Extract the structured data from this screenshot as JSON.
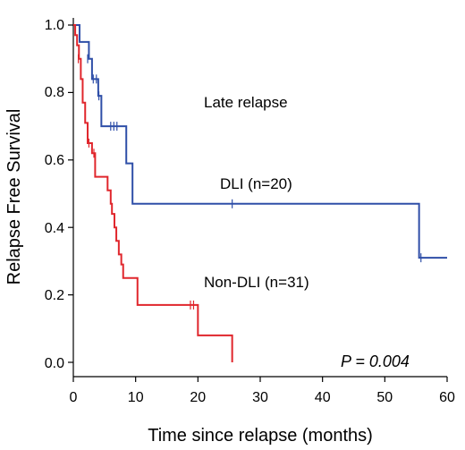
{
  "chart_data": {
    "type": "line",
    "title": "",
    "xlabel": "Time since relapse (months)",
    "ylabel": "Relapse Free Survival",
    "xlim": [
      0,
      60
    ],
    "ylim": [
      0,
      1.0
    ],
    "x_ticks": [
      "0",
      "10",
      "20",
      "30",
      "40",
      "50",
      "60"
    ],
    "y_ticks": [
      "0.0",
      "0.2",
      "0.4",
      "0.6",
      "0.8",
      "1.0"
    ],
    "grid": false,
    "annotations": {
      "panel_label": "Late relapse",
      "p_value": "P = 0.004"
    },
    "series": [
      {
        "name": "DLI (n=20)",
        "color": "#2f4fa8",
        "steps": [
          [
            0,
            1.0
          ],
          [
            1.0,
            0.95
          ],
          [
            2.5,
            0.9
          ],
          [
            3.0,
            0.84
          ],
          [
            4.0,
            0.79
          ],
          [
            4.5,
            0.7
          ],
          [
            8.5,
            0.59
          ],
          [
            9.5,
            0.47
          ],
          [
            55.5,
            0.31
          ],
          [
            60,
            0.31
          ]
        ],
        "censored": [
          [
            2.3,
            0.9
          ],
          [
            3.2,
            0.84
          ],
          [
            3.7,
            0.84
          ],
          [
            4.1,
            0.79
          ],
          [
            6.0,
            0.7
          ],
          [
            6.5,
            0.7
          ],
          [
            7.0,
            0.7
          ],
          [
            25.5,
            0.47
          ],
          [
            55.8,
            0.31
          ]
        ]
      },
      {
        "name": "Non-DLI (n=31)",
        "color": "#e0262c",
        "steps": [
          [
            0,
            1.0
          ],
          [
            0.3,
            0.97
          ],
          [
            0.6,
            0.94
          ],
          [
            0.9,
            0.9
          ],
          [
            1.2,
            0.84
          ],
          [
            1.5,
            0.77
          ],
          [
            1.9,
            0.71
          ],
          [
            2.3,
            0.65
          ],
          [
            3.0,
            0.62
          ],
          [
            3.5,
            0.55
          ],
          [
            5.5,
            0.51
          ],
          [
            6.0,
            0.47
          ],
          [
            6.2,
            0.44
          ],
          [
            6.6,
            0.4
          ],
          [
            6.9,
            0.36
          ],
          [
            7.3,
            0.32
          ],
          [
            7.7,
            0.29
          ],
          [
            8.0,
            0.25
          ],
          [
            10.3,
            0.17
          ],
          [
            20.0,
            0.08
          ],
          [
            25.5,
            0.0
          ]
        ],
        "censored": [
          [
            0.8,
            0.9
          ],
          [
            2.5,
            0.65
          ],
          [
            3.3,
            0.62
          ],
          [
            18.8,
            0.17
          ],
          [
            19.3,
            0.17
          ]
        ]
      }
    ]
  }
}
